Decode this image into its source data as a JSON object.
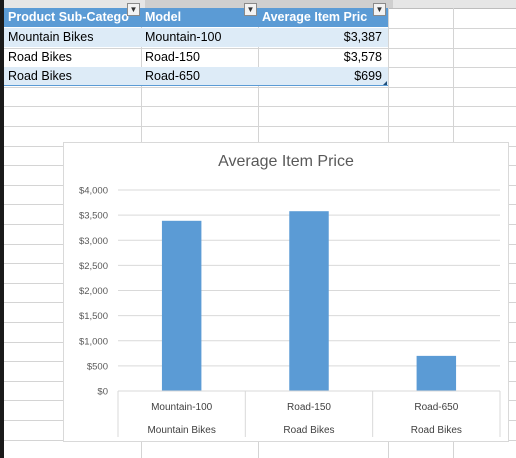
{
  "table": {
    "headers": [
      "Product Sub-Catego",
      "Model",
      "Average Item Pric"
    ],
    "rows": [
      [
        "Mountain Bikes",
        "Mountain-100",
        "$3,387"
      ],
      [
        "Road Bikes",
        "Road-150",
        "$3,578"
      ],
      [
        "Road Bikes",
        "Road-650",
        "$699"
      ]
    ],
    "dropdown_icon": "chevron-down-icon"
  },
  "colors": {
    "header_bg": "#5b9bd5",
    "band_bg": "#ddebf7",
    "bar": "#5b9bd5"
  },
  "chart_data": {
    "type": "bar",
    "title": "Average Item Price",
    "categories": [
      "Mountain-100",
      "Road-150",
      "Road-650"
    ],
    "category_groups": [
      "Mountain Bikes",
      "Road Bikes",
      "Road Bikes"
    ],
    "values": [
      3387,
      3578,
      699
    ],
    "ylim": [
      0,
      4000
    ],
    "yticks": [
      "$0",
      "$500",
      "$1,000",
      "$1,500",
      "$2,000",
      "$2,500",
      "$3,000",
      "$3,500",
      "$4,000"
    ],
    "grid": true,
    "legend": "none",
    "xlabel": "",
    "ylabel": ""
  }
}
